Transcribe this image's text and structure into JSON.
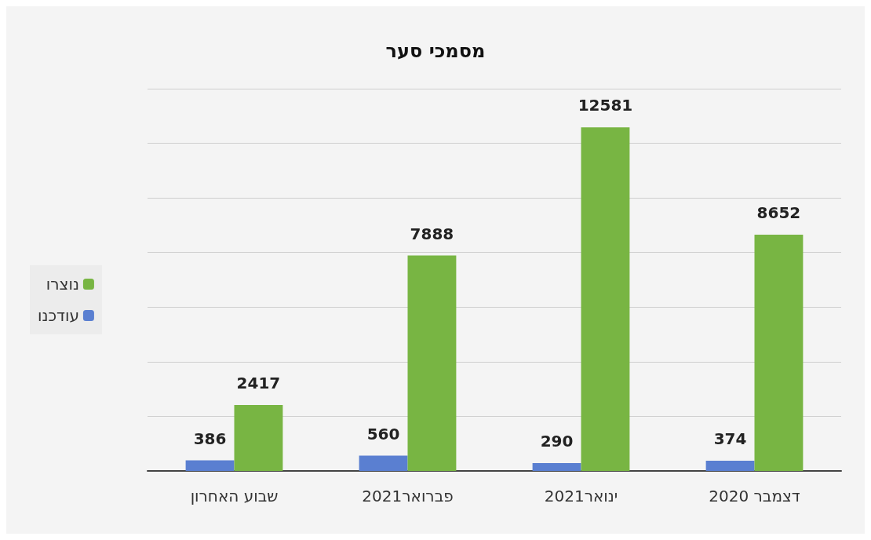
{
  "chart_data": {
    "type": "bar",
    "title": "מסמכי סער",
    "categories": [
      "שבוע האחרון",
      "פברואר2021",
      "ינואר2021",
      "דצמבר 2020"
    ],
    "series": [
      {
        "name": "עודכנו",
        "color": "#5a7fd1",
        "values": [
          386,
          560,
          290,
          374
        ]
      },
      {
        "name": "נוצרו",
        "color": "#78b543",
        "values": [
          2417,
          7888,
          12581,
          8652
        ]
      }
    ],
    "ylim": [
      0,
      14000
    ],
    "yticks": [
      0,
      2000,
      4000,
      6000,
      8000,
      10000,
      12000,
      14000
    ],
    "tick_labels": "x",
    "grid": "y",
    "legend": "left",
    "data_labels": true
  }
}
